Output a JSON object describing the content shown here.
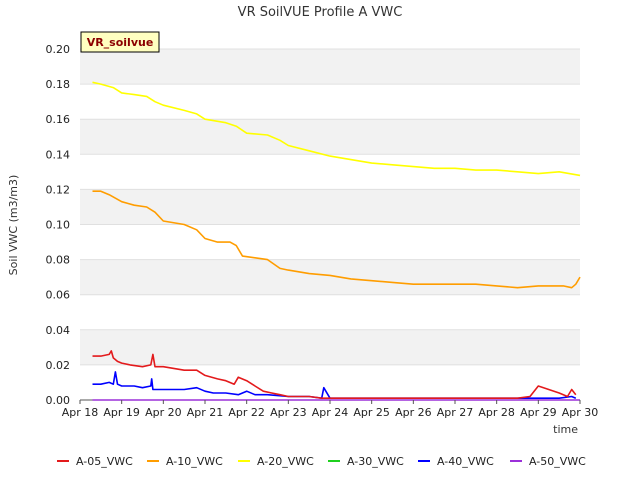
{
  "chart_data": {
    "type": "line",
    "title": "VR SoilVUE Profile A VWC",
    "xlabel": "time",
    "ylabel": "Soil VWC (m3/m3)",
    "badge": "VR_soilvue",
    "xlim": [
      0,
      12
    ],
    "ylim": [
      0,
      0.2
    ],
    "x_ticks": [
      0,
      1,
      2,
      3,
      4,
      5,
      6,
      7,
      8,
      9,
      10,
      11,
      12
    ],
    "x_tick_labels": [
      "Apr 18",
      "Apr 19",
      "Apr 20",
      "Apr 21",
      "Apr 22",
      "Apr 23",
      "Apr 24",
      "Apr 25",
      "Apr 26",
      "Apr 27",
      "Apr 28",
      "Apr 29",
      "Apr 30"
    ],
    "y_ticks": [
      0,
      0.02,
      0.04,
      0.06,
      0.08,
      0.1,
      0.12,
      0.14,
      0.16,
      0.18,
      0.2
    ],
    "y_tick_labels": [
      "0.00",
      "0.02",
      "0.04",
      "0.06",
      "0.08",
      "0.10",
      "0.12",
      "0.14",
      "0.16",
      "0.18",
      "0.20"
    ],
    "grid": true,
    "legend_position": "bottom",
    "series": [
      {
        "name": "A-05_VWC",
        "color": "#e31a1c",
        "x": [
          0.3,
          0.5,
          0.7,
          0.75,
          0.8,
          0.9,
          1.0,
          1.2,
          1.5,
          1.7,
          1.75,
          1.8,
          2.0,
          2.5,
          2.8,
          3.0,
          3.3,
          3.5,
          3.7,
          3.8,
          4.0,
          4.2,
          4.4,
          4.6,
          4.8,
          5.0,
          5.5,
          5.8,
          6.0,
          6.2,
          6.5,
          7.0,
          8.0,
          9.0,
          10.0,
          10.5,
          10.8,
          11.0,
          11.5,
          11.7,
          11.8,
          11.9
        ],
        "y": [
          0.025,
          0.025,
          0.026,
          0.028,
          0.024,
          0.022,
          0.021,
          0.02,
          0.019,
          0.02,
          0.026,
          0.019,
          0.019,
          0.017,
          0.017,
          0.014,
          0.012,
          0.011,
          0.009,
          0.013,
          0.011,
          0.008,
          0.005,
          0.004,
          0.003,
          0.002,
          0.002,
          0.001,
          0.001,
          0.001,
          0.001,
          0.001,
          0.001,
          0.001,
          0.001,
          0.001,
          0.002,
          0.008,
          0.004,
          0.002,
          0.006,
          0.003
        ]
      },
      {
        "name": "A-10_VWC",
        "color": "#ff9d00",
        "x": [
          0.3,
          0.5,
          0.7,
          1.0,
          1.3,
          1.6,
          1.8,
          2.0,
          2.5,
          2.8,
          3.0,
          3.3,
          3.6,
          3.75,
          3.9,
          4.2,
          4.5,
          4.8,
          5.0,
          5.5,
          6.0,
          6.5,
          7.0,
          7.5,
          8.0,
          8.5,
          9.0,
          9.5,
          10.0,
          10.5,
          11.0,
          11.3,
          11.6,
          11.8,
          11.9,
          12.0
        ],
        "y": [
          0.119,
          0.119,
          0.117,
          0.113,
          0.111,
          0.11,
          0.107,
          0.102,
          0.1,
          0.097,
          0.092,
          0.09,
          0.09,
          0.088,
          0.082,
          0.081,
          0.08,
          0.075,
          0.074,
          0.072,
          0.071,
          0.069,
          0.068,
          0.067,
          0.066,
          0.066,
          0.066,
          0.066,
          0.065,
          0.064,
          0.065,
          0.065,
          0.065,
          0.064,
          0.066,
          0.07
        ]
      },
      {
        "name": "A-20_VWC",
        "color": "#ffff00",
        "x": [
          0.3,
          0.5,
          0.8,
          1.0,
          1.3,
          1.6,
          1.8,
          2.0,
          2.5,
          2.8,
          3.0,
          3.5,
          3.75,
          4.0,
          4.5,
          4.8,
          5.0,
          5.5,
          6.0,
          6.5,
          7.0,
          7.5,
          8.0,
          8.5,
          9.0,
          9.5,
          10.0,
          10.5,
          11.0,
          11.5,
          12.0
        ],
        "y": [
          0.181,
          0.18,
          0.178,
          0.175,
          0.174,
          0.173,
          0.17,
          0.168,
          0.165,
          0.163,
          0.16,
          0.158,
          0.156,
          0.152,
          0.151,
          0.148,
          0.145,
          0.142,
          0.139,
          0.137,
          0.135,
          0.134,
          0.133,
          0.132,
          0.132,
          0.131,
          0.131,
          0.13,
          0.129,
          0.13,
          0.128
        ]
      },
      {
        "name": "A-30_VWC",
        "color": "#1fd01f",
        "x": [],
        "y": []
      },
      {
        "name": "A-40_VWC",
        "color": "#0000ff",
        "x": [
          0.3,
          0.5,
          0.7,
          0.8,
          0.85,
          0.9,
          1.0,
          1.3,
          1.5,
          1.7,
          1.72,
          1.75,
          2.0,
          2.5,
          2.8,
          3.0,
          3.2,
          3.5,
          3.8,
          4.0,
          4.2,
          4.5,
          5.0,
          5.5,
          5.8,
          5.85,
          6.0,
          6.5,
          7.0,
          7.5,
          8.0,
          9.0,
          10.0,
          11.0,
          11.5,
          11.8,
          11.9
        ],
        "y": [
          0.009,
          0.009,
          0.01,
          0.009,
          0.016,
          0.009,
          0.008,
          0.008,
          0.007,
          0.008,
          0.012,
          0.006,
          0.006,
          0.006,
          0.007,
          0.005,
          0.004,
          0.004,
          0.003,
          0.005,
          0.003,
          0.003,
          0.002,
          0.002,
          0.001,
          0.007,
          0.001,
          0.001,
          0.001,
          0.001,
          0.001,
          0.001,
          0.001,
          0.001,
          0.001,
          0.002,
          0.001
        ]
      },
      {
        "name": "A-50_VWC",
        "color": "#9b30d9",
        "x": [
          0.3,
          12.0
        ],
        "y": [
          0.0,
          0.0
        ]
      }
    ]
  }
}
